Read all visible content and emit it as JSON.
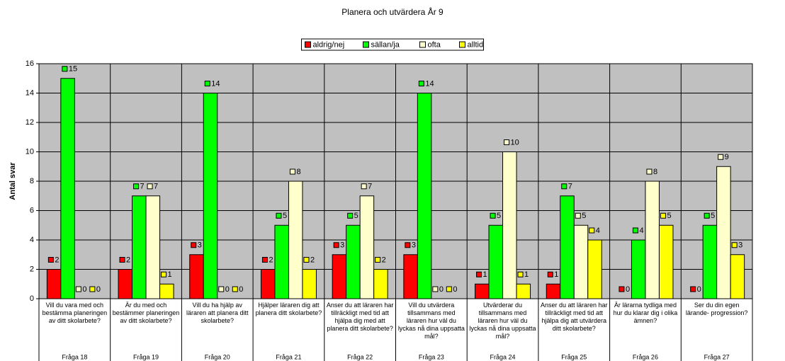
{
  "chart_data": {
    "type": "bar",
    "title": "Planera och utvärdera År 9",
    "y_label": "Antal svar",
    "categories": [
      "Vill du vara med och bestämma planeringen av ditt skolarbete?",
      "Är du med och bestämmer planeringen av ditt skolarbete?",
      "Vill du ha hjälp av läraren att planera ditt skolarbete?",
      "Hjälper läraren dig att planera ditt skolarbete?",
      "Anser du att läraren har tillräckligt med tid att hjälpa dig med att planera ditt skolarbete?",
      "Vill du utvärdera tillsammans med läraren hur väl du lyckas nå dina uppsatta mål?",
      "Utvärderar du tillsammans med läraren hur väl du lyckas nå dina uppsatta mål?",
      "Anser du att läraren har tillräckligt med tid att hjälpa dig att utvärdera ditt skolarbete?",
      "Är lärarna tydliga med hur du klarar dig i olika ämnen?",
      "Ser du din egen lärande- progression?"
    ],
    "category_groups": [
      "Fråga 18",
      "Fråga 19",
      "Fråga 20",
      "Fråga 21",
      "Fråga 22",
      "Fråga 23",
      "Fråga 24",
      "Fråga 25",
      "Fråga 26",
      "Fråga 27"
    ],
    "series": [
      {
        "name": "aldrig/nej",
        "color": "#ff0000",
        "values": [
          2,
          2,
          3,
          2,
          3,
          3,
          1,
          1,
          0,
          0
        ]
      },
      {
        "name": "sällan/ja",
        "color": "#00ff00",
        "values": [
          15,
          7,
          14,
          5,
          5,
          14,
          5,
          7,
          4,
          5
        ]
      },
      {
        "name": "ofta",
        "color": "#ffffcc",
        "values": [
          0,
          7,
          0,
          8,
          7,
          0,
          10,
          5,
          8,
          9
        ]
      },
      {
        "name": "alltid",
        "color": "#ffff00",
        "values": [
          0,
          1,
          0,
          2,
          2,
          0,
          1,
          4,
          5,
          3
        ]
      }
    ],
    "ylim": [
      0,
      16
    ],
    "yticks": [
      0,
      2,
      4,
      6,
      8,
      10,
      12,
      14,
      16
    ],
    "grid": true,
    "legend": "top"
  }
}
